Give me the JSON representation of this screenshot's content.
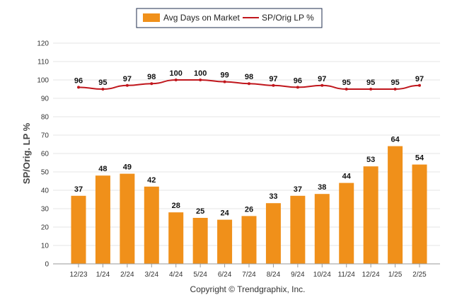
{
  "chart_data": {
    "type": "bar",
    "categories": [
      "12/23",
      "1/24",
      "2/24",
      "3/24",
      "4/24",
      "5/24",
      "6/24",
      "7/24",
      "8/24",
      "9/24",
      "10/24",
      "11/24",
      "12/24",
      "1/25",
      "2/25"
    ],
    "series": [
      {
        "name": "Avg Days on Market",
        "type": "bar",
        "color": "#f0901a",
        "values": [
          37,
          48,
          49,
          42,
          28,
          25,
          24,
          26,
          33,
          37,
          38,
          44,
          53,
          64,
          54
        ]
      },
      {
        "name": "SP/Orig LP %",
        "type": "line",
        "color": "#c0161c",
        "values": [
          96,
          95,
          97,
          98,
          100,
          100,
          99,
          98,
          97,
          96,
          97,
          95,
          95,
          95,
          97
        ]
      }
    ],
    "xlabel": "",
    "ylabel": "SP/Orig. LP %",
    "ylim": [
      0,
      120
    ],
    "yticks": [
      0,
      10,
      20,
      30,
      40,
      50,
      60,
      70,
      80,
      90,
      100,
      110,
      120
    ],
    "grid": true,
    "legend_position": "top-center"
  },
  "footer": {
    "copyright": "Copyright © Trendgraphix, Inc."
  }
}
